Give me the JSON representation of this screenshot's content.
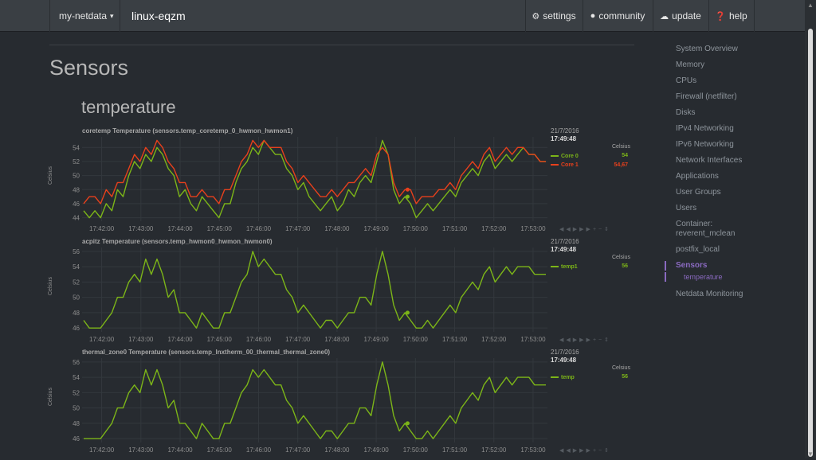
{
  "topbar": {
    "server_menu": "my-netdata",
    "server_caret": "▾",
    "hostname": "linux-eqzm",
    "settings": "settings",
    "community": "community",
    "update": "update",
    "help": "help"
  },
  "page": {
    "title": "Sensors",
    "section": "temperature"
  },
  "nav": {
    "items": [
      "System Overview",
      "Memory",
      "CPUs",
      "Firewall (netfilter)",
      "Disks",
      "IPv4 Networking",
      "IPv6 Networking",
      "Network Interfaces",
      "Applications",
      "User Groups",
      "Users",
      "Container:\nreverent_mclean",
      "postfix_local"
    ],
    "active": "Sensors",
    "active_sub": "temperature",
    "after": "Netdata Monitoring"
  },
  "colors": {
    "green": "#7cb518",
    "red": "#e8401c",
    "bg": "#272b30",
    "grid": "#33383d"
  },
  "charts": [
    {
      "title": "coretemp Temperature (sensors.temp_coretemp_0_hwmon_hwmon1)",
      "ylabel": "Celsius",
      "date": "21/7/2016",
      "time": "17:49:48",
      "unit": "Celsius",
      "legend": [
        {
          "name": "Core 0",
          "value": "54",
          "color": "#7cb518"
        },
        {
          "name": "Core 1",
          "value": "54,67",
          "color": "#e8401c"
        }
      ]
    },
    {
      "title": "acpitz Temperature (sensors.temp_hwmon0_hwmon_hwmon0)",
      "ylabel": "Celsius",
      "date": "21/7/2016",
      "time": "17:49:48",
      "unit": "Celsius",
      "legend": [
        {
          "name": "temp1",
          "value": "56",
          "color": "#7cb518"
        }
      ]
    },
    {
      "title": "thermal_zone0 Temperature (sensors.temp_lnxtherm_00_thermal_thermal_zone0)",
      "ylabel": "Celsius",
      "date": "21/7/2016",
      "time": "17:49:48",
      "unit": "Celsius",
      "legend": [
        {
          "name": "temp",
          "value": "56",
          "color": "#7cb518"
        }
      ]
    }
  ],
  "chart_data": [
    {
      "type": "line",
      "x_ticks": [
        "17:42:00",
        "17:43:00",
        "17:44:00",
        "17:45:00",
        "17:46:00",
        "17:47:00",
        "17:48:00",
        "17:49:00",
        "17:50:00",
        "17:51:00",
        "17:52:00",
        "17:53:00"
      ],
      "y_ticks": [
        44,
        46,
        48,
        50,
        52,
        54
      ],
      "ylim": [
        43.5,
        55.5
      ],
      "xlim": [
        "17:41:30",
        "17:53:22"
      ],
      "series": [
        {
          "name": "Core 0",
          "color": "#7cb518",
          "values": [
            45,
            44,
            45,
            44,
            46,
            45,
            48,
            47,
            50,
            52,
            51,
            53,
            52,
            54,
            53,
            51,
            50,
            47,
            48,
            46,
            45,
            47,
            46,
            45,
            44,
            46,
            46,
            49,
            51,
            52,
            54,
            53,
            55,
            54,
            53,
            53,
            51,
            50,
            48,
            49,
            47,
            46,
            45,
            46,
            47,
            45,
            46,
            48,
            47,
            49,
            50,
            49,
            52,
            55,
            53,
            48,
            46,
            47,
            46,
            44,
            45,
            46,
            45,
            46,
            47,
            48,
            47,
            49,
            50,
            51,
            50,
            52,
            53,
            51,
            52,
            53,
            52,
            53,
            54,
            53,
            53,
            52,
            52
          ]
        },
        {
          "name": "Core 1",
          "color": "#e8401c",
          "values": [
            46,
            47,
            47,
            46,
            48,
            47,
            49,
            49,
            51,
            53,
            52,
            54,
            53,
            55,
            54,
            52,
            51,
            49,
            49,
            47,
            47,
            48,
            47,
            47,
            46,
            48,
            48,
            50,
            52,
            53,
            55,
            54,
            55,
            54,
            54,
            54,
            52,
            51,
            49,
            50,
            49,
            48,
            47,
            47,
            48,
            47,
            48,
            49,
            49,
            50,
            51,
            50,
            53,
            54,
            53,
            49,
            47,
            48,
            48,
            46,
            47,
            47,
            47,
            48,
            48,
            49,
            48,
            50,
            51,
            52,
            51,
            53,
            54,
            52,
            53,
            54,
            53,
            54,
            54,
            53,
            53,
            52,
            52
          ]
        }
      ]
    },
    {
      "type": "line",
      "x_ticks": [
        "17:42:00",
        "17:43:00",
        "17:44:00",
        "17:45:00",
        "17:46:00",
        "17:47:00",
        "17:48:00",
        "17:49:00",
        "17:50:00",
        "17:51:00",
        "17:52:00",
        "17:53:00"
      ],
      "y_ticks": [
        46,
        48,
        50,
        52,
        54,
        56
      ],
      "ylim": [
        45.5,
        56.5
      ],
      "xlim": [
        "17:41:30",
        "17:53:22"
      ],
      "series": [
        {
          "name": "temp1",
          "color": "#7cb518",
          "values": [
            47,
            46,
            46,
            46,
            47,
            48,
            50,
            50,
            52,
            53,
            52,
            55,
            53,
            55,
            53,
            50,
            51,
            48,
            48,
            47,
            46,
            48,
            47,
            46,
            46,
            48,
            48,
            50,
            52,
            53,
            56,
            54,
            55,
            54,
            53,
            53,
            51,
            50,
            48,
            49,
            48,
            47,
            46,
            47,
            47,
            46,
            47,
            48,
            48,
            50,
            50,
            49,
            53,
            56,
            53,
            49,
            47,
            48,
            47,
            46,
            46,
            47,
            46,
            47,
            48,
            49,
            48,
            50,
            51,
            52,
            51,
            53,
            54,
            52,
            53,
            54,
            53,
            54,
            54,
            54,
            53,
            53,
            53
          ]
        }
      ]
    },
    {
      "type": "line",
      "x_ticks": [
        "17:42:00",
        "17:43:00",
        "17:44:00",
        "17:45:00",
        "17:46:00",
        "17:47:00",
        "17:48:00",
        "17:49:00",
        "17:50:00",
        "17:51:00",
        "17:52:00",
        "17:53:00"
      ],
      "y_ticks": [
        46,
        48,
        50,
        52,
        54,
        56
      ],
      "ylim": [
        45.5,
        56.5
      ],
      "xlim": [
        "17:41:30",
        "17:53:22"
      ],
      "series": [
        {
          "name": "temp",
          "color": "#7cb518",
          "values": [
            46,
            46,
            46,
            46,
            47,
            48,
            50,
            50,
            52,
            53,
            52,
            55,
            53,
            55,
            53,
            50,
            51,
            48,
            48,
            47,
            46,
            48,
            47,
            46,
            46,
            48,
            48,
            50,
            52,
            53,
            55,
            54,
            55,
            54,
            53,
            53,
            51,
            50,
            48,
            49,
            48,
            47,
            46,
            47,
            47,
            46,
            47,
            48,
            48,
            50,
            50,
            49,
            53,
            56,
            53,
            49,
            47,
            48,
            47,
            46,
            46,
            47,
            46,
            47,
            48,
            49,
            48,
            50,
            51,
            52,
            51,
            53,
            54,
            52,
            53,
            54,
            53,
            54,
            54,
            54,
            53,
            53,
            53
          ]
        }
      ]
    }
  ]
}
